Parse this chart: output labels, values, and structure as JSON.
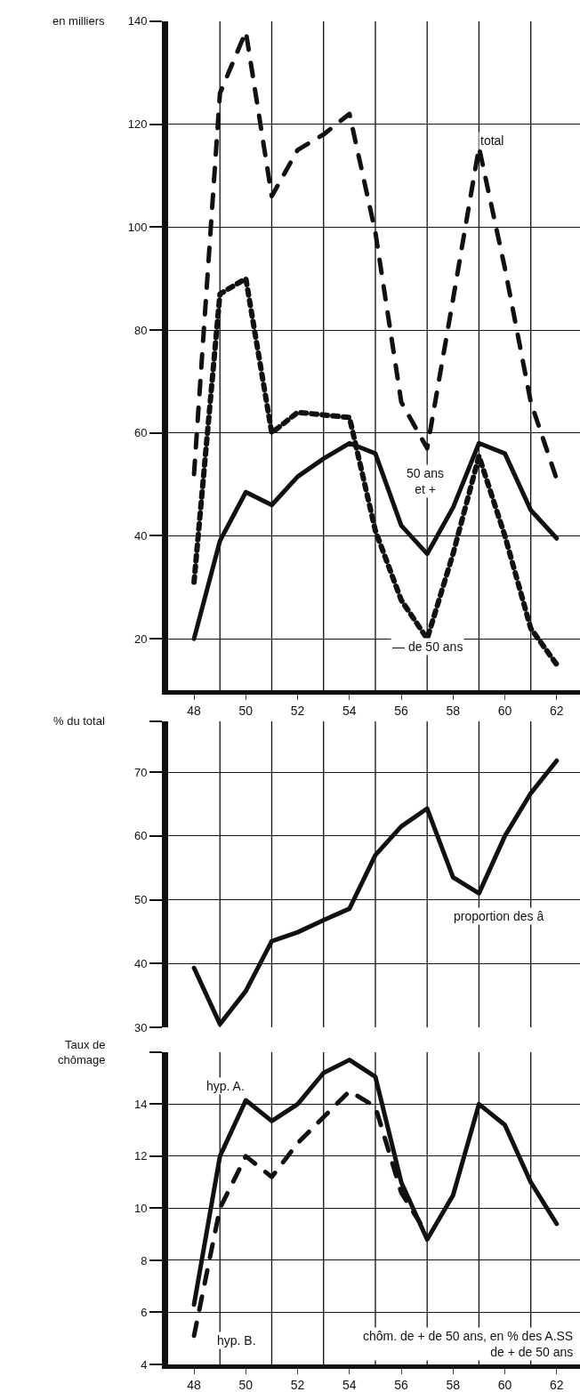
{
  "chart_data": [
    {
      "type": "line",
      "ylabel": "en milliers",
      "x": [
        48,
        49,
        50,
        51,
        52,
        53,
        54,
        55,
        56,
        57,
        58,
        59,
        60,
        61,
        62
      ],
      "series": [
        {
          "color": "#111111",
          "line_style": "dashed",
          "values": [
            52,
            126,
            138,
            106,
            115,
            118,
            122,
            99,
            66,
            57,
            86,
            115.5,
            92,
            66,
            51
          ]
        },
        {
          "color": "#111111",
          "line_style": "dotted",
          "values": [
            31,
            87,
            90,
            60,
            64,
            63.5,
            63,
            41,
            27.5,
            20,
            36.5,
            55.5,
            40,
            22,
            15
          ]
        },
        {
          "color": "#111111",
          "line_style": "solid",
          "values": [
            20,
            39,
            48.5,
            46,
            51.5,
            55,
            58,
            56,
            42,
            36.5,
            45.5,
            58,
            56,
            45,
            39.5
          ]
        }
      ],
      "annotations": [
        "total",
        "50 ans\net +",
        "— de 50 ans"
      ],
      "xlim": [
        47,
        62.9
      ],
      "ylim": [
        10,
        140
      ],
      "xticks": [
        48,
        {
          "value": 49,
          "label": null
        },
        50,
        {
          "value": 51,
          "label": null
        },
        52,
        {
          "value": 53,
          "label": null
        },
        54,
        {
          "value": 55,
          "label": null
        },
        56,
        {
          "value": 57,
          "label": null
        },
        58,
        {
          "value": 59,
          "label": null
        },
        60,
        {
          "value": 61,
          "label": null
        },
        62
      ],
      "yticks": [
        20,
        40,
        60,
        80,
        100,
        120,
        140
      ],
      "grid": true
    },
    {
      "type": "line",
      "ylabel": "% du total",
      "x": [
        48,
        49,
        50,
        51,
        52,
        53,
        54,
        55,
        56,
        57,
        58,
        59,
        60,
        61,
        62
      ],
      "series": [
        {
          "color": "#111111",
          "line_style": "solid",
          "values": [
            39.3,
            30.5,
            35.7,
            43.5,
            44.9,
            46.8,
            48.6,
            57,
            61.5,
            64.3,
            53.5,
            51,
            60,
            66.7,
            71.8
          ]
        }
      ],
      "annotations": [
        "proportion des â"
      ],
      "xlim": [
        47,
        62.9
      ],
      "ylim": [
        30,
        78
      ],
      "xticks": [
        48,
        {
          "value": 49,
          "label": null
        },
        50,
        {
          "value": 51,
          "label": null
        },
        52,
        {
          "value": 53,
          "label": null
        },
        54,
        {
          "value": 55,
          "label": null
        },
        56,
        {
          "value": 57,
          "label": null
        },
        58,
        {
          "value": 59,
          "label": null
        },
        60,
        {
          "value": 61,
          "label": null
        },
        62
      ],
      "yticks": [
        30,
        40,
        50,
        60,
        70,
        {
          "value": 78,
          "label": null
        }
      ],
      "grid": true,
      "tick_labels": "y"
    },
    {
      "type": "line",
      "ylabel": "Taux de\nchômage",
      "x": [
        48,
        49,
        50,
        51,
        52,
        53,
        54,
        55,
        56,
        57,
        58,
        59,
        60,
        61,
        62
      ],
      "series": [
        {
          "color": "#111111",
          "line_style": "solid",
          "values": [
            6.3,
            12,
            14.15,
            13.35,
            14,
            15.2,
            15.7,
            15.05,
            11,
            8.8,
            10.5,
            14,
            13.2,
            11,
            9.4
          ]
        },
        {
          "color": "#111111",
          "line_style": "dashed",
          "values": [
            5.1,
            10,
            12,
            11.2,
            12.5,
            13.5,
            14.5,
            13.9,
            10.6,
            9,
            null,
            null,
            null,
            null,
            null
          ]
        }
      ],
      "annotations": [
        "hyp. A.",
        "hyp. B.",
        "chôm. de + de 50 ans, en % des A.SS\nde + de 50 ans"
      ],
      "xlim": [
        47,
        62.9
      ],
      "ylim": [
        4,
        16
      ],
      "xticks": [
        48,
        {
          "value": 49,
          "label": null
        },
        50,
        {
          "value": 51,
          "label": null
        },
        52,
        {
          "value": 53,
          "label": null
        },
        54,
        {
          "value": 55,
          "label": null
        },
        56,
        {
          "value": 57,
          "label": null
        },
        58,
        {
          "value": 59,
          "label": null
        },
        60,
        {
          "value": 61,
          "label": null
        },
        62
      ],
      "yticks": [
        4,
        6,
        8,
        10,
        12,
        14,
        {
          "value": 16,
          "label": null
        }
      ],
      "grid": true
    }
  ]
}
